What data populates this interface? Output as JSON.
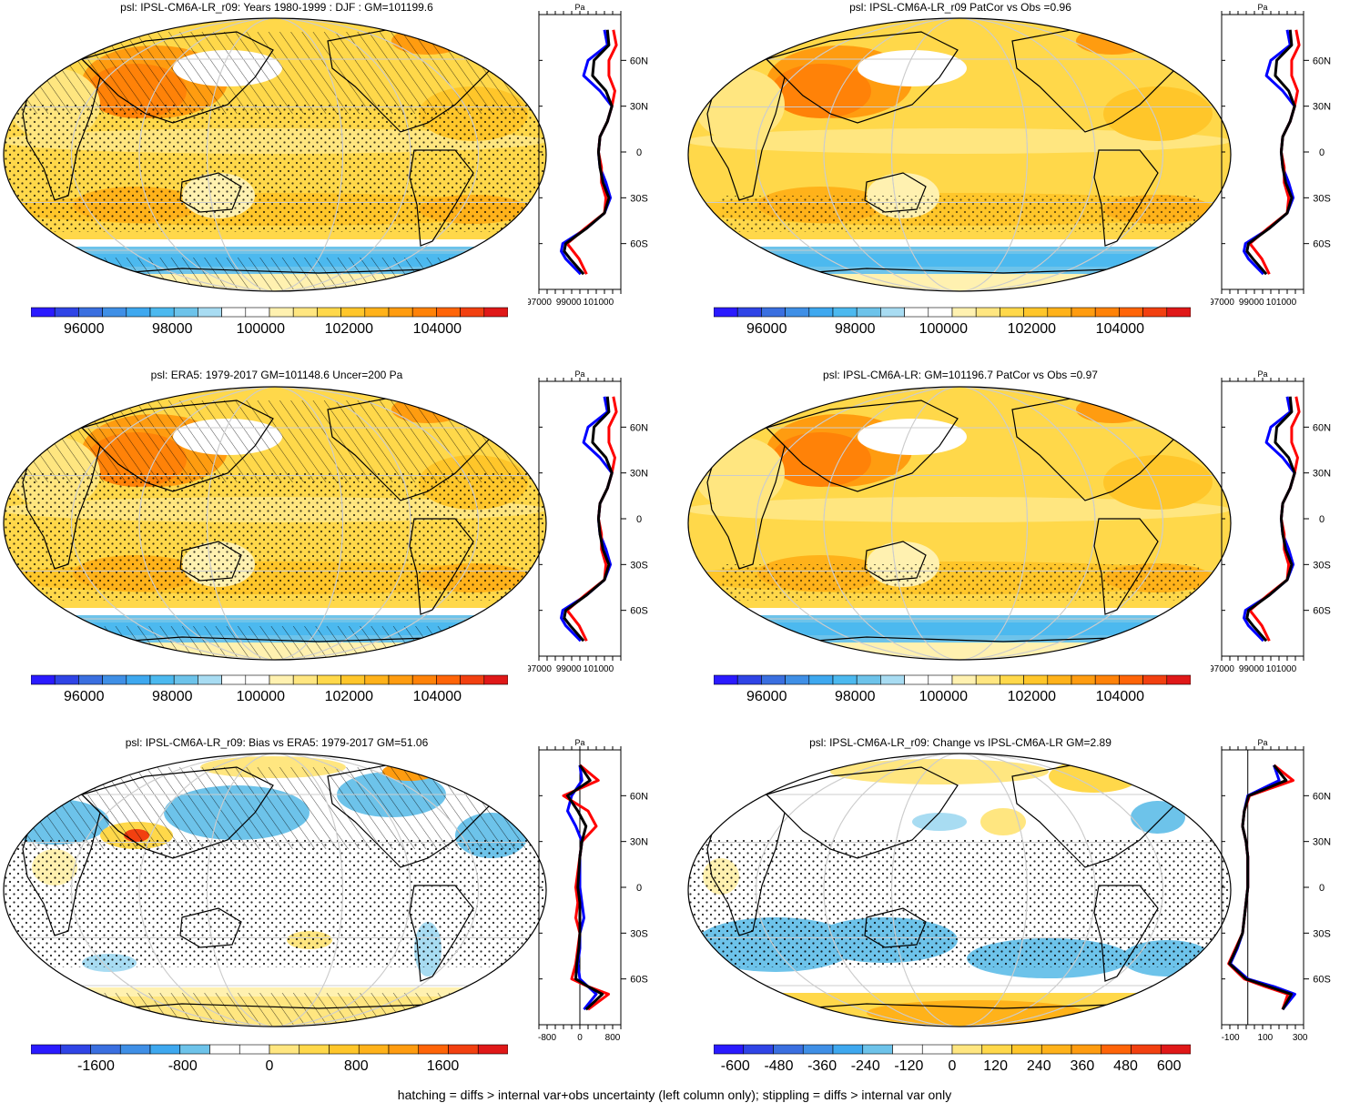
{
  "footnote": "hatching = diffs > internal var+obs uncertainty (left column only); stippling = diffs > internal var only",
  "colors": {
    "abs_palette": [
      "#2a1aff",
      "#2f44e6",
      "#3a6fe0",
      "#3f8fe6",
      "#3ea8ef",
      "#4cb9ef",
      "#6dc3ea",
      "#a8dcf2",
      "#ffffff",
      "#ffffff",
      "#fff1b0",
      "#ffe680",
      "#ffd84a",
      "#ffc62a",
      "#ffb21a",
      "#ff9c10",
      "#ff8208",
      "#ff6408",
      "#f24010",
      "#e01818"
    ],
    "hatch": "#000000",
    "obs_line": "#0000ff",
    "model_line": "#ff0000",
    "mean_line": "#000000"
  },
  "chart_data": [
    {
      "type": "heatmap",
      "title": "psl: IPSL-CM6A-LR_r09: Years 1980-1999 : DJF : GM=101199.6",
      "variable": "psl",
      "units": "Pa",
      "colorbar_labels": [
        "96000",
        "98000",
        "100000",
        "102000",
        "104000"
      ],
      "colorbar_range": [
        94800,
        105600
      ],
      "profile": {
        "units_label": "Pa",
        "x_ticks": [
          "97000",
          "99000",
          "101000"
        ],
        "lat_ticks": [
          "60N",
          "30N",
          "0",
          "30S",
          "60S"
        ],
        "xlim": [
          97000,
          102500
        ],
        "lat": [
          80,
          70,
          60,
          50,
          40,
          30,
          20,
          10,
          0,
          -10,
          -20,
          -30,
          -40,
          -50,
          -60,
          -65,
          -70,
          -80
        ],
        "obs": [
          101400,
          101600,
          100300,
          100000,
          101100,
          101900,
          101600,
          101100,
          101000,
          101100,
          101500,
          101800,
          101400,
          100200,
          98600,
          98500,
          98800,
          99800
        ],
        "model": [
          102000,
          102200,
          101700,
          101700,
          102100,
          101900,
          101600,
          101100,
          101000,
          101200,
          101200,
          101500,
          101400,
          100100,
          98900,
          99300,
          99700,
          100200
        ],
        "mean": [
          101600,
          101700,
          100700,
          100600,
          101500,
          101900,
          101600,
          101100,
          101000,
          101100,
          101300,
          101700,
          101400,
          100200,
          98800,
          98700,
          99100,
          100000
        ]
      }
    },
    {
      "type": "heatmap",
      "title": "psl: IPSL-CM6A-LR_r09 PatCor vs Obs =0.96",
      "variable": "psl",
      "units": "Pa",
      "colorbar_labels": [
        "96000",
        "98000",
        "100000",
        "102000",
        "104000"
      ],
      "colorbar_range": [
        94800,
        105600
      ],
      "profile": {
        "units_label": "Pa",
        "x_ticks": [
          "97000",
          "99000",
          "101000"
        ],
        "lat_ticks": [
          "60N",
          "30N",
          "0",
          "30S",
          "60S"
        ],
        "xlim": [
          97000,
          102500
        ],
        "lat": [
          80,
          70,
          60,
          50,
          40,
          30,
          20,
          10,
          0,
          -10,
          -20,
          -30,
          -40,
          -50,
          -60,
          -65,
          -70,
          -80
        ],
        "obs": [
          101400,
          101600,
          100300,
          100000,
          101100,
          101900,
          101600,
          101100,
          101000,
          101100,
          101500,
          101800,
          101400,
          100200,
          98600,
          98500,
          98800,
          99800
        ],
        "model": [
          102000,
          102200,
          101700,
          101700,
          102100,
          101900,
          101600,
          101100,
          101000,
          101200,
          101200,
          101500,
          101400,
          100100,
          98900,
          99300,
          99700,
          100200
        ],
        "mean": [
          101600,
          101700,
          100700,
          100600,
          101500,
          101900,
          101600,
          101100,
          101000,
          101100,
          101300,
          101700,
          101400,
          100200,
          98800,
          98700,
          99100,
          100000
        ]
      }
    },
    {
      "type": "heatmap",
      "title": "psl: ERA5: 1979-2017 GM=101148.6 Uncer=200 Pa",
      "variable": "psl",
      "units": "Pa",
      "colorbar_labels": [
        "96000",
        "98000",
        "100000",
        "102000",
        "104000"
      ],
      "colorbar_range": [
        94800,
        105600
      ],
      "profile": {
        "units_label": "Pa",
        "x_ticks": [
          "97000",
          "99000",
          "101000"
        ],
        "lat_ticks": [
          "60N",
          "30N",
          "0",
          "30S",
          "60S"
        ],
        "xlim": [
          97000,
          102500
        ],
        "lat": [
          80,
          70,
          60,
          50,
          40,
          30,
          20,
          10,
          0,
          -10,
          -20,
          -30,
          -40,
          -50,
          -60,
          -65,
          -70,
          -80
        ],
        "obs": [
          101400,
          101600,
          100300,
          100000,
          101100,
          101900,
          101600,
          101100,
          101000,
          101100,
          101500,
          101800,
          101400,
          100200,
          98600,
          98500,
          98800,
          99800
        ],
        "model": [
          102000,
          102200,
          101700,
          101700,
          102100,
          101900,
          101600,
          101100,
          101000,
          101200,
          101200,
          101500,
          101400,
          100100,
          98900,
          99300,
          99700,
          100200
        ],
        "mean": [
          101600,
          101700,
          100700,
          100600,
          101500,
          101900,
          101600,
          101100,
          101000,
          101100,
          101300,
          101700,
          101400,
          100200,
          98800,
          98700,
          99100,
          100000
        ]
      }
    },
    {
      "type": "heatmap",
      "title": "psl: IPSL-CM6A-LR: GM=101196.7 PatCor vs Obs =0.97",
      "variable": "psl",
      "units": "Pa",
      "colorbar_labels": [
        "96000",
        "98000",
        "100000",
        "102000",
        "104000"
      ],
      "colorbar_range": [
        94800,
        105600
      ],
      "profile": {
        "units_label": "Pa",
        "x_ticks": [
          "97000",
          "99000",
          "101000"
        ],
        "lat_ticks": [
          "60N",
          "30N",
          "0",
          "30S",
          "60S"
        ],
        "xlim": [
          97000,
          102500
        ],
        "lat": [
          80,
          70,
          60,
          50,
          40,
          30,
          20,
          10,
          0,
          -10,
          -20,
          -30,
          -40,
          -50,
          -60,
          -65,
          -70,
          -80
        ],
        "obs": [
          101400,
          101600,
          100300,
          100000,
          101100,
          101900,
          101600,
          101100,
          101000,
          101100,
          101500,
          101800,
          101400,
          100200,
          98600,
          98500,
          98800,
          99800
        ],
        "model": [
          102000,
          102200,
          101700,
          101700,
          102100,
          101900,
          101600,
          101100,
          101000,
          101200,
          101200,
          101500,
          101400,
          100100,
          98900,
          99300,
          99700,
          100200
        ],
        "mean": [
          101600,
          101700,
          100700,
          100600,
          101500,
          101900,
          101600,
          101100,
          101000,
          101100,
          101300,
          101700,
          101400,
          100200,
          98800,
          98700,
          99100,
          100000
        ]
      }
    },
    {
      "type": "heatmap",
      "title": "psl: IPSL-CM6A-LR_r09: Bias vs ERA5: 1979-2017 GM=51.06",
      "variable": "psl bias",
      "units": "Pa",
      "colorbar_labels": [
        "-1600",
        "-800",
        "0",
        "800",
        "1600"
      ],
      "colorbar_range": [
        -2200,
        2200
      ],
      "profile": {
        "units_label": "Pa",
        "x_ticks": [
          "-800",
          "0",
          "800"
        ],
        "lat_ticks": [
          "60N",
          "30N",
          "0",
          "30S",
          "60S"
        ],
        "xlim": [
          -1000,
          1000
        ],
        "zero_line": 0,
        "lat": [
          80,
          70,
          60,
          50,
          40,
          30,
          20,
          10,
          0,
          -10,
          -20,
          -30,
          -40,
          -50,
          -60,
          -65,
          -70,
          -80
        ],
        "obs": [
          0,
          50,
          -200,
          -300,
          -100,
          50,
          0,
          0,
          0,
          50,
          100,
          0,
          0,
          -50,
          0,
          200,
          400,
          100
        ],
        "model": [
          0,
          450,
          -400,
          200,
          400,
          50,
          0,
          -50,
          -100,
          -50,
          -100,
          0,
          -50,
          -100,
          -200,
          200,
          700,
          200
        ],
        "mean": [
          0,
          250,
          -300,
          -50,
          150,
          50,
          0,
          -25,
          -50,
          0,
          0,
          0,
          -25,
          -75,
          -100,
          200,
          550,
          150
        ]
      }
    },
    {
      "type": "heatmap",
      "title": "psl: IPSL-CM6A-LR_r09: Change vs IPSL-CM6A-LR GM=2.89",
      "variable": "psl change",
      "units": "Pa",
      "colorbar_labels": [
        "-600",
        "-480",
        "-360",
        "-240",
        "-120",
        "0",
        "120",
        "240",
        "360",
        "480",
        "600"
      ],
      "colorbar_range": [
        -660,
        660
      ],
      "profile": {
        "units_label": "Pa",
        "x_ticks": [
          "-100",
          "100",
          "300"
        ],
        "lat_ticks": [
          "60N",
          "30N",
          "0",
          "30S",
          "60S"
        ],
        "xlim": [
          -150,
          320
        ],
        "zero_line": 0,
        "lat": [
          80,
          70,
          60,
          50,
          40,
          30,
          20,
          10,
          0,
          -10,
          -20,
          -30,
          -40,
          -50,
          -60,
          -65,
          -70,
          -80
        ],
        "obs": [
          150,
          180,
          0,
          -20,
          -30,
          -10,
          0,
          0,
          0,
          -10,
          -20,
          -30,
          -60,
          -100,
          0,
          150,
          270,
          200
        ],
        "model": [
          150,
          260,
          10,
          -20,
          -30,
          -10,
          0,
          0,
          0,
          -10,
          -20,
          -30,
          -70,
          -110,
          -20,
          100,
          230,
          200
        ],
        "mean": [
          150,
          220,
          5,
          -20,
          -30,
          -10,
          0,
          0,
          0,
          -10,
          -20,
          -30,
          -65,
          -105,
          -10,
          120,
          250,
          200
        ]
      }
    }
  ]
}
